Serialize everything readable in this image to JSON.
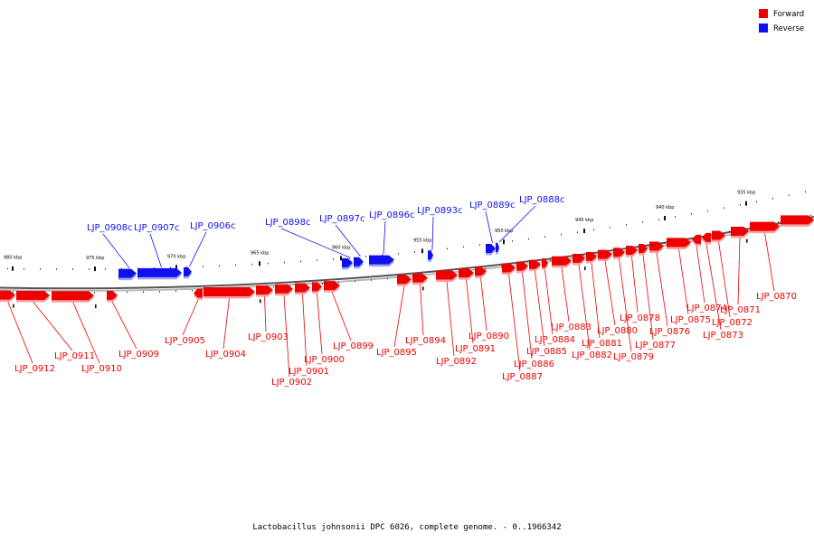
{
  "legend": {
    "forward": {
      "label": "Forward",
      "color": "#ee0000"
    },
    "reverse": {
      "label": "Reverse",
      "color": "#1010ee"
    }
  },
  "caption": "Lactobacillus johnsonii DPC 6026, complete genome. - 0..1966342",
  "ticks": [
    {
      "label": "980 kbp"
    },
    {
      "label": "975 kbp"
    },
    {
      "label": "970 kbp"
    },
    {
      "label": "965 kbp"
    },
    {
      "label": "960 kbp"
    },
    {
      "label": "955 kbp"
    },
    {
      "label": "950 kbp"
    },
    {
      "label": "945 kbp"
    },
    {
      "label": "940 kbp"
    },
    {
      "label": "935 kbp"
    }
  ],
  "reverse_genes": [
    {
      "label": "LJP_0908c"
    },
    {
      "label": "LJP_0907c"
    },
    {
      "label": "LJP_0906c"
    },
    {
      "label": "LJP_0898c"
    },
    {
      "label": "LJP_0897c"
    },
    {
      "label": "LJP_0896c"
    },
    {
      "label": "LJP_0893c"
    },
    {
      "label": "LJP_0889c"
    },
    {
      "label": "LJP_0888c"
    }
  ],
  "forward_genes": [
    {
      "label": "LJP_0912"
    },
    {
      "label": "LJP_0911"
    },
    {
      "label": "LJP_0910"
    },
    {
      "label": "LJP_0909"
    },
    {
      "label": "LJP_0905"
    },
    {
      "label": "LJP_0904"
    },
    {
      "label": "LJP_0903"
    },
    {
      "label": "LJP_0902"
    },
    {
      "label": "LJP_0901"
    },
    {
      "label": "LJP_0900"
    },
    {
      "label": "LJP_0899"
    },
    {
      "label": "LJP_0895"
    },
    {
      "label": "LJP_0894"
    },
    {
      "label": "LJP_0892"
    },
    {
      "label": "LJP_0891"
    },
    {
      "label": "LJP_0890"
    },
    {
      "label": "LJP_0887"
    },
    {
      "label": "LJP_0886"
    },
    {
      "label": "LJP_0885"
    },
    {
      "label": "LJP_0884"
    },
    {
      "label": "LJP_0883"
    },
    {
      "label": "LJP_0882"
    },
    {
      "label": "LJP_0881"
    },
    {
      "label": "LJP_0880"
    },
    {
      "label": "LJP_0879"
    },
    {
      "label": "LJP_0878"
    },
    {
      "label": "LJP_0877"
    },
    {
      "label": "LJP_0876"
    },
    {
      "label": "LJP_0875"
    },
    {
      "label": "LJP_0874"
    },
    {
      "label": "LJP_0873"
    },
    {
      "label": "LJP_0872"
    },
    {
      "label": "LJP_0871"
    },
    {
      "label": "LJP_0870"
    }
  ]
}
